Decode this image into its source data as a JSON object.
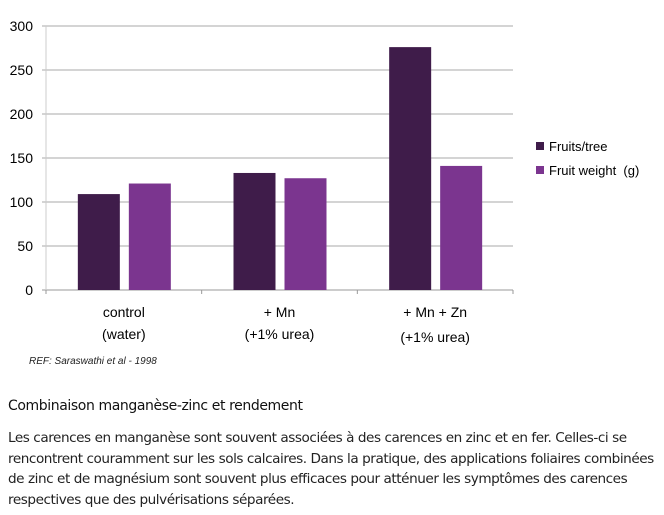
{
  "chart_data": {
    "type": "bar",
    "categories": [
      [
        "control",
        "(water)"
      ],
      [
        "+ Mn",
        "(+1% urea)"
      ],
      [
        "+ Mn + Zn",
        "(+1% urea)"
      ]
    ],
    "series": [
      {
        "name": "Fruits/tree",
        "color": "#3f1c4a",
        "values": [
          109,
          133,
          276
        ]
      },
      {
        "name": "Fruit weight  (g)",
        "color": "#7b358f",
        "values": [
          121,
          127,
          141
        ]
      }
    ],
    "yticks": [
      "0",
      "50",
      "100",
      "150",
      "200",
      "250",
      "300"
    ],
    "ylim": [
      0,
      300
    ],
    "grid": true,
    "legend": "right"
  },
  "reference": "REF: Saraswathi  et al - 1998",
  "heading": "Combinaison manganèse-zinc et rendement",
  "paragraph": "Les carences en manganèse sont souvent associées à des carences en zinc et en fer. Celles-ci se rencontrent couramment sur les sols calcaires. Dans la pratique, des applications foliaires combinées de zinc et de magnésium sont souvent plus efficaces pour atténuer les symptômes des carences respectives que des pulvérisations séparées."
}
